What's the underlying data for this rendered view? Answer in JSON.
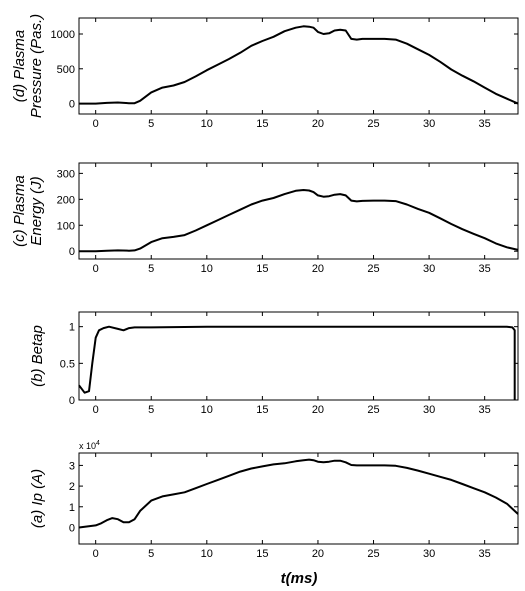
{
  "figure": {
    "xlabel": "t(ms)",
    "background": "#ffffff",
    "line_color": "#000000"
  },
  "chart_data": [
    {
      "type": "line",
      "panel": "d",
      "ylabel_lines": [
        "(d) Plasma",
        "Pressure (Pas.)"
      ],
      "xlim": [
        -1.5,
        38
      ],
      "ylim": [
        -150,
        1230
      ],
      "xticks": [
        0,
        5,
        10,
        15,
        20,
        25,
        30,
        35
      ],
      "yticks": [
        0,
        500,
        1000
      ],
      "xticklabels": [
        "0",
        "5",
        "10",
        "15",
        "20",
        "25",
        "30",
        "35"
      ],
      "yticklabels": [
        "0",
        "500",
        "1000"
      ],
      "multiplier": "",
      "grid": false,
      "x": [
        -1.5,
        0,
        1,
        2,
        3,
        3.5,
        4,
        5,
        6,
        7,
        8,
        9,
        10,
        11,
        12,
        13,
        14,
        15,
        16,
        17,
        18,
        18.7,
        19.2,
        19.6,
        20,
        20.5,
        21,
        21.5,
        22,
        22.5,
        23,
        23.5,
        24,
        25,
        26,
        27,
        28,
        29,
        30,
        31,
        32,
        33,
        34,
        35,
        36,
        37,
        38
      ],
      "y": [
        0,
        0,
        10,
        15,
        5,
        5,
        40,
        160,
        230,
        260,
        310,
        390,
        480,
        560,
        640,
        730,
        830,
        900,
        960,
        1040,
        1090,
        1110,
        1105,
        1090,
        1030,
        1000,
        1010,
        1050,
        1060,
        1050,
        930,
        920,
        930,
        930,
        930,
        920,
        860,
        780,
        700,
        600,
        490,
        400,
        320,
        230,
        140,
        70,
        0
      ]
    },
    {
      "type": "line",
      "panel": "c",
      "ylabel_lines": [
        "(c) Plasma",
        "Energy (J)"
      ],
      "xlim": [
        -1.5,
        38
      ],
      "ylim": [
        -30,
        340
      ],
      "xticks": [
        0,
        5,
        10,
        15,
        20,
        25,
        30,
        35
      ],
      "yticks": [
        0,
        100,
        200,
        300
      ],
      "xticklabels": [
        "0",
        "5",
        "10",
        "15",
        "20",
        "25",
        "30",
        "35"
      ],
      "yticklabels": [
        "0",
        "100",
        "200",
        "300"
      ],
      "multiplier": "",
      "grid": false,
      "x": [
        -1.5,
        0,
        1,
        2,
        3,
        3.5,
        4,
        5,
        6,
        7,
        8,
        9,
        10,
        11,
        12,
        13,
        14,
        15,
        16,
        17,
        18,
        18.7,
        19.2,
        19.6,
        20,
        20.5,
        21,
        21.5,
        22,
        22.5,
        23,
        23.5,
        24,
        25,
        26,
        27,
        28,
        29,
        30,
        31,
        32,
        33,
        34,
        35,
        36,
        37,
        38
      ],
      "y": [
        0,
        0,
        2,
        3,
        2,
        3,
        10,
        35,
        50,
        55,
        62,
        80,
        100,
        120,
        140,
        160,
        180,
        195,
        205,
        220,
        233,
        236,
        234,
        228,
        215,
        210,
        212,
        218,
        220,
        215,
        195,
        192,
        194,
        195,
        195,
        193,
        180,
        163,
        148,
        127,
        105,
        85,
        67,
        50,
        30,
        15,
        5
      ]
    },
    {
      "type": "line",
      "panel": "b",
      "ylabel_lines": [
        "(b) Betap"
      ],
      "xlim": [
        -1.5,
        38
      ],
      "ylim": [
        0,
        1.2
      ],
      "xticks": [
        0,
        5,
        10,
        15,
        20,
        25,
        30,
        35
      ],
      "yticks": [
        0,
        0.5,
        1
      ],
      "xticklabels": [
        "0",
        "5",
        "10",
        "15",
        "20",
        "25",
        "30",
        "35"
      ],
      "yticklabels": [
        "0",
        "0.5",
        "1"
      ],
      "multiplier": "",
      "grid": false,
      "x": [
        -1.5,
        -1,
        -0.6,
        -0.3,
        0,
        0.3,
        0.7,
        1.2,
        2,
        2.5,
        3,
        3.5,
        5,
        10,
        15,
        20,
        25,
        30,
        35,
        37,
        37.5,
        37.7,
        37.7
      ],
      "y": [
        0.2,
        0.1,
        0.12,
        0.5,
        0.85,
        0.95,
        0.98,
        1.0,
        0.97,
        0.95,
        0.98,
        0.99,
        0.99,
        1.0,
        1.0,
        1.0,
        1.0,
        1.0,
        1.0,
        1.0,
        0.99,
        0.95,
        0
      ]
    },
    {
      "type": "line",
      "panel": "a",
      "ylabel_lines": [
        "(a) Ip (A)"
      ],
      "xlim": [
        -1.5,
        38
      ],
      "ylim": [
        -8000,
        36000
      ],
      "xticks": [
        0,
        5,
        10,
        15,
        20,
        25,
        30,
        35
      ],
      "yticks": [
        0,
        10000,
        20000,
        30000
      ],
      "xticklabels": [
        "0",
        "5",
        "10",
        "15",
        "20",
        "25",
        "30",
        "35"
      ],
      "yticklabels": [
        "0",
        "1",
        "2",
        "3"
      ],
      "multiplier": "x 10",
      "multiplier_exp": "4",
      "grid": false,
      "x": [
        -1.5,
        0,
        0.5,
        1,
        1.5,
        2,
        2.5,
        3,
        3.5,
        4,
        5,
        6,
        7,
        8,
        9,
        10,
        11,
        12,
        13,
        14,
        15,
        16,
        17,
        18,
        18.7,
        19.2,
        19.6,
        20,
        20.5,
        21,
        21.5,
        22,
        22.5,
        23,
        23.5,
        24,
        25,
        26,
        27,
        28,
        29,
        30,
        31,
        32,
        33,
        34,
        35,
        36,
        37,
        38
      ],
      "y": [
        0,
        1000,
        2000,
        3500,
        4500,
        4000,
        2500,
        2500,
        4000,
        8000,
        13000,
        15000,
        16000,
        17000,
        19000,
        21000,
        23000,
        25000,
        27000,
        28500,
        29500,
        30500,
        31000,
        32000,
        32500,
        32800,
        32500,
        31800,
        31500,
        31800,
        32300,
        32300,
        31500,
        30200,
        30000,
        30000,
        30000,
        30000,
        29800,
        28800,
        27500,
        26000,
        24500,
        23000,
        21000,
        19000,
        17000,
        14500,
        11500,
        6500
      ]
    }
  ]
}
